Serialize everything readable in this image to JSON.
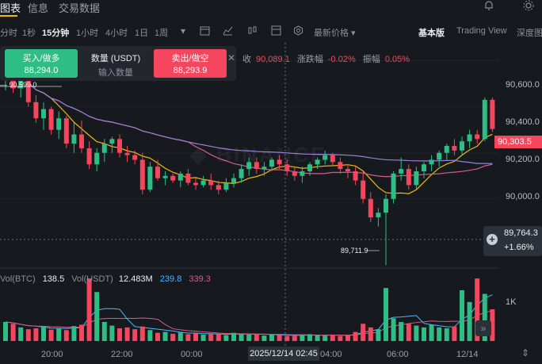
{
  "tabs": [
    "图表",
    "信息",
    "交易数据"
  ],
  "toolbar": {
    "intervals": [
      "分时",
      "1秒",
      "15分钟",
      "1小时",
      "4小时",
      "1日",
      "1周"
    ],
    "active_interval": "15分钟",
    "price_type": "最新价格",
    "views": [
      "基本版",
      "Trading View",
      "深度图"
    ],
    "active_view": "基本版"
  },
  "order": {
    "buy_label": "买入/做多",
    "buy_price": "88,294.0",
    "qty_label": "数量 (USDT)",
    "qty_placeholder": "输入数量",
    "sell_label": "卖出/做空",
    "sell_price": "88,293.9"
  },
  "ohlc": {
    "close_label": "收",
    "close_value": "90,089.1",
    "change_label": "涨跌幅",
    "change_value": "-0.02%",
    "amp_label": "振幅",
    "amp_value": "0.05%"
  },
  "price_axis": [
    "90,600.0",
    "90,400.0",
    "90,200.0",
    "90,000.0"
  ],
  "current_price": "90,303.5",
  "crosshair": {
    "price": "89,764.3",
    "pct": "+1.66%"
  },
  "chart_high": "90,599.0",
  "chart_low": "89,711.9",
  "volume": {
    "btc_label": "Vol(BTC)",
    "btc_value": "138.5",
    "usdt_label": "Vol(USDT)",
    "usdt_value": "12.483M",
    "ma1": "239.8",
    "ma2": "339.3",
    "axis_1k": "1K"
  },
  "time_axis": [
    "20:00",
    "22:00",
    "00:00",
    "04:00",
    "06:00",
    "12/14"
  ],
  "crosshair_time": "2025/12/14 02:45",
  "colors": {
    "up": "#2ebd85",
    "down": "#f6465d",
    "accent": "#f0b90b"
  },
  "chart_data": {
    "type": "candlestick",
    "ohlc": [
      [
        90520,
        90600,
        90470,
        90580
      ],
      [
        90580,
        90600,
        90460,
        90480
      ],
      [
        90480,
        90560,
        90440,
        90540
      ],
      [
        90540,
        90560,
        90400,
        90420
      ],
      [
        90420,
        90450,
        90330,
        90350
      ],
      [
        90350,
        90420,
        90300,
        90390
      ],
      [
        90390,
        90400,
        90280,
        90300
      ],
      [
        90300,
        90380,
        90260,
        90350
      ],
      [
        90350,
        90360,
        90220,
        90240
      ],
      [
        90240,
        90330,
        90200,
        90280
      ],
      [
        90280,
        90340,
        90200,
        90220
      ],
      [
        90220,
        90250,
        90130,
        90150
      ],
      [
        90150,
        90220,
        90120,
        90200
      ],
      [
        90200,
        90260,
        90160,
        90240
      ],
      [
        90240,
        90270,
        90200,
        90260
      ],
      [
        90260,
        90280,
        90180,
        90200
      ],
      [
        90200,
        90230,
        90160,
        90190
      ],
      [
        90190,
        90210,
        90150,
        90170
      ],
      [
        90170,
        90200,
        90020,
        90040
      ],
      [
        90040,
        90160,
        90030,
        90140
      ],
      [
        90140,
        90170,
        90080,
        90090
      ],
      [
        90090,
        90120,
        90060,
        90100
      ],
      [
        90100,
        90110,
        90070,
        90080
      ],
      [
        90080,
        90120,
        90050,
        90110
      ],
      [
        90110,
        90130,
        90060,
        90070
      ],
      [
        90070,
        90090,
        90040,
        90060
      ],
      [
        90060,
        90100,
        90050,
        90080
      ],
      [
        90080,
        90110,
        90040,
        90060
      ],
      [
        90060,
        90080,
        90020,
        90040
      ],
      [
        90040,
        90090,
        90030,
        90070
      ],
      [
        90070,
        90110,
        90050,
        90090
      ],
      [
        90090,
        90150,
        90070,
        90130
      ],
      [
        90130,
        90180,
        90100,
        90160
      ],
      [
        90160,
        90180,
        90110,
        90130
      ],
      [
        90130,
        90160,
        90100,
        90140
      ],
      [
        90140,
        90180,
        90120,
        90170
      ],
      [
        90170,
        90190,
        90130,
        90150
      ],
      [
        90150,
        90170,
        90100,
        90120
      ],
      [
        90120,
        90140,
        90080,
        90100
      ],
      [
        90100,
        90140,
        90070,
        90120
      ],
      [
        90120,
        90160,
        90100,
        90150
      ],
      [
        90150,
        90180,
        90130,
        90170
      ],
      [
        90170,
        90210,
        90150,
        90190
      ],
      [
        90190,
        90200,
        90140,
        90160
      ],
      [
        90160,
        90180,
        90110,
        90130
      ],
      [
        90130,
        90150,
        90090,
        90120
      ],
      [
        90120,
        90140,
        90060,
        90080
      ],
      [
        90080,
        90120,
        89980,
        90000
      ],
      [
        90000,
        90030,
        89900,
        89920
      ],
      [
        89920,
        89960,
        89880,
        89940
      ],
      [
        89940,
        90020,
        89712,
        90000
      ],
      [
        90000,
        90120,
        89980,
        90110
      ],
      [
        90110,
        90180,
        90080,
        90130
      ],
      [
        90130,
        90150,
        90040,
        90060
      ],
      [
        90060,
        90140,
        90040,
        90120
      ],
      [
        90120,
        90160,
        90090,
        90150
      ],
      [
        90150,
        90190,
        90120,
        90170
      ],
      [
        90170,
        90210,
        90140,
        90200
      ],
      [
        90200,
        90240,
        90170,
        90230
      ],
      [
        90230,
        90260,
        90190,
        90210
      ],
      [
        90210,
        90270,
        90190,
        90250
      ],
      [
        90250,
        90300,
        90220,
        90280
      ],
      [
        90280,
        90300,
        90240,
        90260
      ],
      [
        90260,
        90440,
        90250,
        90430
      ],
      [
        90430,
        90440,
        90290,
        90303.5
      ]
    ],
    "volume": [
      420,
      380,
      300,
      260,
      280,
      320,
      250,
      290,
      240,
      330,
      360,
      1380,
      1080,
      420,
      340,
      280,
      300,
      260,
      320,
      240,
      180,
      200,
      160,
      190,
      150,
      170,
      140,
      160,
      150,
      130,
      180,
      160,
      140,
      150,
      120,
      140,
      130,
      110,
      120,
      130,
      150,
      130,
      120,
      140,
      110,
      130,
      200,
      380,
      300,
      260,
      1170,
      500,
      420,
      380,
      340,
      300,
      360,
      300,
      280,
      320,
      1120,
      860,
      1380,
      1040,
      700
    ],
    "ylim": [
      89700,
      90650
    ],
    "x_ticks": [
      "20:00",
      "22:00",
      "00:00",
      "04:00",
      "06:00",
      "12/14"
    ]
  }
}
